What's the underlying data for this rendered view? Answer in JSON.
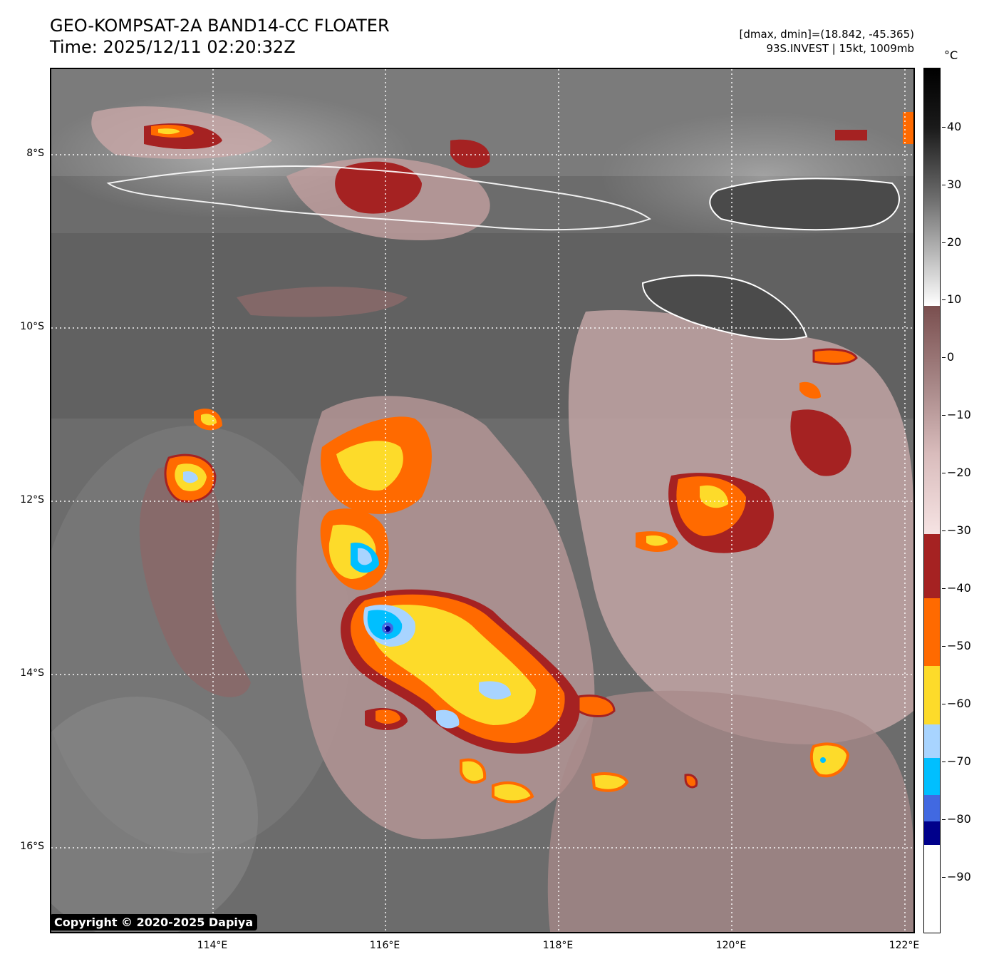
{
  "header": {
    "title_line1": "GEO-KOMPSAT-2A BAND14-CC FLOATER",
    "title_line2": "Time: 2025/12/11 02:20:32Z",
    "info_line1": "[dmax, dmin]=(18.842, -45.365)",
    "info_line2": "93S.INVEST | 15kt, 1009mb"
  },
  "map": {
    "lat_labels": [
      "8°S",
      "10°S",
      "12°S",
      "14°S",
      "16°S"
    ],
    "lon_labels": [
      "114°E",
      "116°E",
      "118°E",
      "120°E",
      "122°E"
    ],
    "copyright": "Copyright © 2020-2025 Dapiya"
  },
  "colorbar": {
    "unit": "°C",
    "tick_labels": [
      "40",
      "30",
      "20",
      "10",
      "0",
      "−10",
      "−20",
      "−30",
      "−40",
      "−50",
      "−60",
      "−70",
      "−80",
      "−90"
    ],
    "colors": {
      "warm_black": "#000000",
      "gray_mid": "#6e6e6e",
      "white": "#ffffff",
      "brown": "#7a4f4f",
      "pink": "#f3d6d6",
      "dark_red": "#a52222",
      "orange": "#ff6a00",
      "yellow": "#fddb2a",
      "light_blue": "#a8d4ff",
      "cyan": "#00bfff",
      "royal_blue": "#4169e1",
      "navy": "#00008b"
    }
  }
}
